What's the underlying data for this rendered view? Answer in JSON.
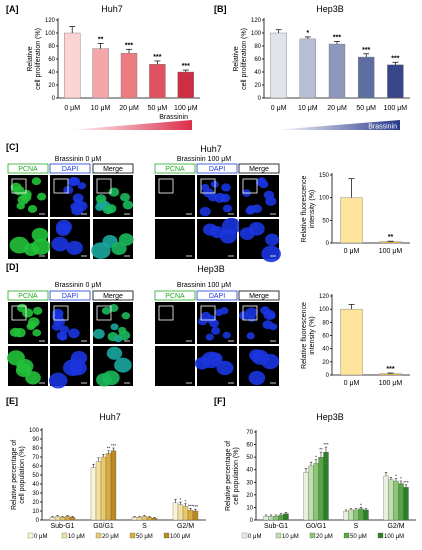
{
  "panels": {
    "A": {
      "label": "[A]",
      "title": "Huh7"
    },
    "B": {
      "label": "[B]",
      "title": "Hep3B"
    },
    "C": {
      "label": "[C]",
      "title": "Huh7"
    },
    "D": {
      "label": "[D]",
      "title": "Hep3B"
    },
    "E": {
      "label": "[E]",
      "title": "Huh7"
    },
    "F": {
      "label": "[F]",
      "title": "Hep3B"
    }
  },
  "micro": {
    "channels": [
      "PCNA",
      "DAPI",
      "Merge"
    ],
    "group_left": "Brassinin 0 μM",
    "group_right": "Brassinin 100 μM",
    "channel_colors": {
      "PCNA": "#22aa22",
      "DAPI": "#1a3cdc",
      "Merge": "#000000"
    }
  },
  "brassinin_label": "Brassinin",
  "chart_data": [
    {
      "id": "A",
      "type": "bar",
      "title": "Huh7",
      "categories": [
        "0 μM",
        "10 μM",
        "20 μM",
        "50 μM",
        "100 μM"
      ],
      "values": [
        100,
        76,
        69,
        52,
        40
      ],
      "errors": [
        10,
        8,
        6,
        5,
        3
      ],
      "sig": [
        "",
        "**",
        "***",
        "***",
        "***"
      ],
      "ylabel": "Relative\ncell proliferation (%)",
      "yticks": [
        0,
        20,
        40,
        60,
        80,
        100,
        120
      ],
      "ylim": [
        0,
        120
      ],
      "colors": [
        "#fbd3d3",
        "#f5a6a8",
        "#ec7b82",
        "#e05261",
        "#cc2f44"
      ],
      "gradient_colors": [
        "#ffffff",
        "#dc2d4a"
      ]
    },
    {
      "id": "B",
      "type": "bar",
      "title": "Hep3B",
      "categories": [
        "0 μM",
        "10 μM",
        "20 μM",
        "50 μM",
        "100 μM"
      ],
      "values": [
        100,
        91,
        83,
        63,
        51
      ],
      "errors": [
        5,
        3,
        4,
        5,
        4
      ],
      "sig": [
        "",
        "*",
        "***",
        "***",
        "***"
      ],
      "ylabel": "Relative\ncell proliferation (%)",
      "yticks": [
        0,
        20,
        40,
        60,
        80,
        100,
        120
      ],
      "ylim": [
        0,
        120
      ],
      "colors": [
        "#e1e4ea",
        "#b7bfd4",
        "#8c97bb",
        "#5f6ea0",
        "#37458a"
      ],
      "gradient_colors": [
        "#ffffff",
        "#2a3a8c"
      ]
    },
    {
      "id": "C",
      "type": "bar",
      "categories": [
        "0 μM",
        "100 μM"
      ],
      "values": [
        100,
        3
      ],
      "errors": [
        42,
        1
      ],
      "sig": [
        "",
        "**"
      ],
      "ylabel": "Relative fluorescence\nintensity (%)",
      "yticks": [
        0,
        50,
        100,
        150
      ],
      "ylim": [
        0,
        150
      ],
      "colors": [
        "#fde49a",
        "#f2c14b"
      ]
    },
    {
      "id": "D",
      "type": "bar",
      "categories": [
        "0 μM",
        "100 μM"
      ],
      "values": [
        100,
        2
      ],
      "errors": [
        7,
        1
      ],
      "sig": [
        "",
        "***"
      ],
      "ylabel": "Relative fluorescence\nintensity (%)",
      "yticks": [
        0,
        20,
        40,
        60,
        80,
        100,
        120
      ],
      "ylim": [
        0,
        120
      ],
      "colors": [
        "#fde49a",
        "#f2c14b"
      ]
    },
    {
      "id": "E",
      "type": "bar",
      "title": "Huh7",
      "categories": [
        "Sub-G1",
        "G0/G1",
        "S",
        "G2/M"
      ],
      "series": [
        {
          "name": "0 μM",
          "values": [
            3,
            58,
            3,
            19
          ]
        },
        {
          "name": "10 μM",
          "values": [
            4,
            65,
            3,
            17
          ]
        },
        {
          "name": "20 μM",
          "values": [
            3,
            70,
            4,
            15
          ]
        },
        {
          "name": "50 μM",
          "values": [
            4,
            74,
            3,
            11
          ]
        },
        {
          "name": "100 μM",
          "values": [
            3,
            77,
            2,
            10
          ]
        }
      ],
      "errors": [
        [
          1,
          4,
          1,
          4
        ],
        [
          1,
          4,
          1,
          3
        ],
        [
          1,
          3,
          1,
          3
        ],
        [
          1,
          3,
          1,
          2
        ],
        [
          1,
          3,
          1,
          2
        ]
      ],
      "sig": [
        [
          "",
          "",
          "",
          ""
        ],
        [
          "",
          "",
          "",
          "*"
        ],
        [
          "",
          "",
          "",
          "*"
        ],
        [
          "",
          "**",
          "",
          "***"
        ],
        [
          "",
          "***",
          "",
          "***"
        ]
      ],
      "ylabel": "Relative percentage of\ncell population (%)",
      "yticks": [
        0,
        10,
        20,
        30,
        40,
        50,
        60,
        70,
        80,
        90,
        100
      ],
      "ylim": [
        0,
        100
      ],
      "colors": [
        "#fbf4d3",
        "#f3e0a0",
        "#e9c96a",
        "#d9ac3d",
        "#b98a1f"
      ]
    },
    {
      "id": "F",
      "type": "bar",
      "title": "Hep3B",
      "categories": [
        "Sub-G1",
        "G0/G1",
        "S",
        "G2/M"
      ],
      "series": [
        {
          "name": "0 μM",
          "values": [
            3,
            38,
            7,
            35
          ]
        },
        {
          "name": "10 μM",
          "values": [
            3,
            43,
            8,
            32
          ]
        },
        {
          "name": "20 μM",
          "values": [
            3,
            45,
            8,
            31
          ]
        },
        {
          "name": "50 μM",
          "values": [
            4,
            50,
            9,
            29
          ]
        },
        {
          "name": "100 μM",
          "values": [
            5,
            54,
            8,
            26
          ]
        }
      ],
      "errors": [
        [
          1,
          3,
          1,
          3
        ],
        [
          1,
          3,
          1,
          2
        ],
        [
          1,
          3,
          1,
          2
        ],
        [
          1,
          4,
          1,
          2
        ],
        [
          1,
          4,
          1,
          2
        ]
      ],
      "sig": [
        [
          "",
          "",
          "",
          ""
        ],
        [
          "",
          "",
          "",
          ""
        ],
        [
          "",
          "*",
          "",
          "*"
        ],
        [
          "",
          "**",
          "*",
          "*"
        ],
        [
          "",
          "***",
          "",
          "***"
        ]
      ],
      "ylabel": "Relative percentage of\ncell population (%)",
      "yticks": [
        0,
        10,
        20,
        30,
        40,
        50,
        60,
        70
      ],
      "ylim": [
        0,
        70
      ],
      "colors": [
        "#e6f2df",
        "#bfe0ad",
        "#8cc776",
        "#55a545",
        "#2d7f2a"
      ]
    }
  ]
}
